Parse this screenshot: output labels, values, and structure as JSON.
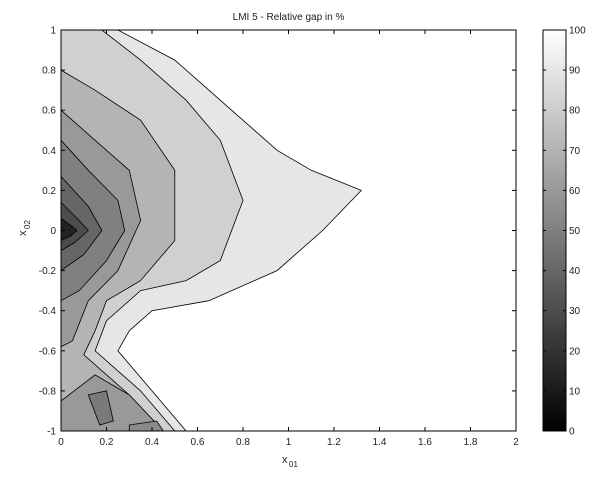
{
  "chart_data": {
    "type": "contour",
    "title": "LMI 5 - Relative gap in %",
    "xlabel": {
      "main": "x",
      "sub": "01"
    },
    "ylabel": {
      "main": "x",
      "sub": "02"
    },
    "xlim": [
      0,
      2
    ],
    "ylim": [
      -1,
      1
    ],
    "x_ticks": [
      0,
      0.2,
      0.4,
      0.6,
      0.8,
      1,
      1.2,
      1.4,
      1.6,
      1.8,
      2
    ],
    "x_tick_labels": [
      "0",
      "0.2",
      "0.4",
      "0.6",
      "0.8",
      "1",
      "1.2",
      "1.4",
      "1.6",
      "1.8",
      "2"
    ],
    "y_ticks": [
      -1,
      -0.8,
      -0.6,
      -0.4,
      -0.2,
      0,
      0.2,
      0.4,
      0.6,
      0.8,
      1
    ],
    "y_tick_labels": [
      "-1",
      "-0.8",
      "-0.6",
      "-0.4",
      "-0.2",
      "0",
      "0.2",
      "0.4",
      "0.6",
      "0.8",
      "1"
    ],
    "colorbar": {
      "range": [
        0,
        100
      ],
      "ticks": [
        0,
        10,
        20,
        30,
        40,
        50,
        60,
        70,
        80,
        90,
        100
      ],
      "tick_labels": [
        "0",
        "10",
        "20",
        "30",
        "40",
        "50",
        "60",
        "70",
        "80",
        "90",
        "100"
      ],
      "colormap": "gray"
    },
    "contour_levels": [
      0,
      10,
      20,
      30,
      40,
      50,
      60,
      70,
      80,
      90,
      100
    ],
    "regions": [
      {
        "level": 90,
        "color": "#e6e6e6",
        "points": [
          [
            0,
            1
          ],
          [
            0.25,
            1
          ],
          [
            0.5,
            0.85
          ],
          [
            0.75,
            0.6
          ],
          [
            0.95,
            0.4
          ],
          [
            1.1,
            0.3
          ],
          [
            1.32,
            0.2
          ],
          [
            1.15,
            0
          ],
          [
            0.95,
            -0.2
          ],
          [
            0.65,
            -0.35
          ],
          [
            0.4,
            -0.4
          ],
          [
            0.3,
            -0.5
          ],
          [
            0.25,
            -0.6
          ],
          [
            0.4,
            -0.8
          ],
          [
            0.55,
            -1
          ],
          [
            0,
            -1
          ]
        ]
      },
      {
        "level": 80,
        "color": "#d0d0d0",
        "points": [
          [
            0,
            1
          ],
          [
            0.18,
            1
          ],
          [
            0.35,
            0.85
          ],
          [
            0.55,
            0.65
          ],
          [
            0.7,
            0.45
          ],
          [
            0.8,
            0.15
          ],
          [
            0.7,
            -0.15
          ],
          [
            0.55,
            -0.25
          ],
          [
            0.35,
            -0.3
          ],
          [
            0.2,
            -0.45
          ],
          [
            0.15,
            -0.6
          ],
          [
            0.35,
            -0.8
          ],
          [
            0.5,
            -1
          ],
          [
            0,
            -1
          ]
        ]
      },
      {
        "level": 70,
        "color": "#b4b4b4",
        "points": [
          [
            0,
            0.8
          ],
          [
            0.15,
            0.7
          ],
          [
            0.35,
            0.55
          ],
          [
            0.5,
            0.3
          ],
          [
            0.5,
            -0.05
          ],
          [
            0.35,
            -0.25
          ],
          [
            0.2,
            -0.35
          ],
          [
            0.15,
            -0.5
          ],
          [
            0.1,
            -0.62
          ],
          [
            0.3,
            -0.82
          ],
          [
            0.45,
            -1
          ],
          [
            0,
            -1
          ]
        ]
      },
      {
        "level": 60,
        "color": "#999999",
        "points": [
          [
            0,
            0.6
          ],
          [
            0.15,
            0.45
          ],
          [
            0.3,
            0.3
          ],
          [
            0.35,
            0.05
          ],
          [
            0.25,
            -0.2
          ],
          [
            0.12,
            -0.35
          ],
          [
            0.05,
            -0.55
          ],
          [
            0,
            -0.58
          ]
        ]
      },
      {
        "level": 50,
        "color": "#808080",
        "points": [
          [
            0,
            0.45
          ],
          [
            0.12,
            0.3
          ],
          [
            0.25,
            0.15
          ],
          [
            0.28,
            0
          ],
          [
            0.2,
            -0.15
          ],
          [
            0.08,
            -0.3
          ],
          [
            0,
            -0.35
          ]
        ]
      },
      {
        "level": 40,
        "color": "#666666",
        "points": [
          [
            0,
            0.27
          ],
          [
            0.12,
            0.12
          ],
          [
            0.18,
            0
          ],
          [
            0.1,
            -0.12
          ],
          [
            0,
            -0.2
          ]
        ]
      },
      {
        "level": 30,
        "color": "#4c4c4c",
        "points": [
          [
            0,
            0.14
          ],
          [
            0.08,
            0.05
          ],
          [
            0.12,
            0
          ],
          [
            0.06,
            -0.06
          ],
          [
            0,
            -0.1
          ]
        ]
      },
      {
        "level": 10,
        "color": "#222222",
        "points": [
          [
            0,
            0.06
          ],
          [
            0.05,
            0.02
          ],
          [
            0.07,
            0
          ],
          [
            0.04,
            -0.03
          ],
          [
            0,
            -0.05
          ]
        ]
      },
      {
        "level": 70,
        "color": "#999999",
        "points": [
          [
            0,
            -0.85
          ],
          [
            0.15,
            -0.72
          ],
          [
            0.3,
            -0.82
          ],
          [
            0.45,
            -1
          ],
          [
            0,
            -1
          ]
        ]
      },
      {
        "level": 50,
        "color": "#7a7a7a",
        "points": [
          [
            0.12,
            -0.82
          ],
          [
            0.2,
            -0.8
          ],
          [
            0.23,
            -0.95
          ],
          [
            0.17,
            -0.97
          ]
        ]
      },
      {
        "level": 60,
        "color": "#8a8a8a",
        "points": [
          [
            0.3,
            -0.97
          ],
          [
            0.42,
            -0.95
          ],
          [
            0.45,
            -1
          ],
          [
            0.3,
            -1
          ]
        ]
      }
    ]
  }
}
